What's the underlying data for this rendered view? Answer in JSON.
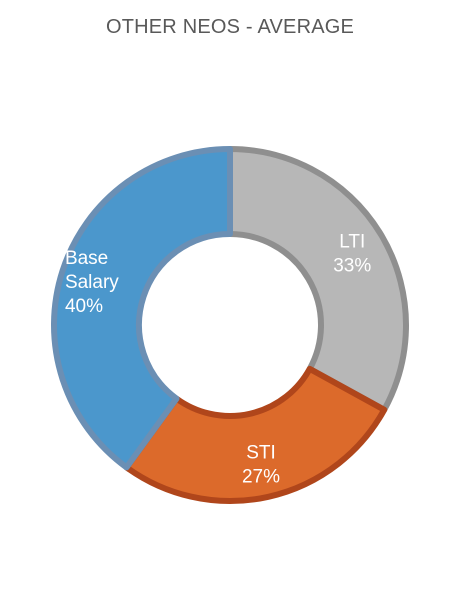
{
  "chart_data": {
    "type": "pie",
    "title": "OTHER NEOS - AVERAGE",
    "slices": [
      {
        "name": "LTI",
        "value": 33,
        "label_lines": [
          "LTI",
          "33%"
        ],
        "fill": "#b7b7b7",
        "stroke": "#8f8f8f"
      },
      {
        "name": "STI",
        "value": 27,
        "label_lines": [
          "STI",
          "27%"
        ],
        "fill": "#dc6a2b",
        "stroke": "#b0461b"
      },
      {
        "name": "Base Salary",
        "value": 40,
        "label_lines": [
          "Base",
          "Salary",
          "40%"
        ],
        "fill": "#4b97cc",
        "stroke": "#6b8fb4"
      }
    ]
  }
}
